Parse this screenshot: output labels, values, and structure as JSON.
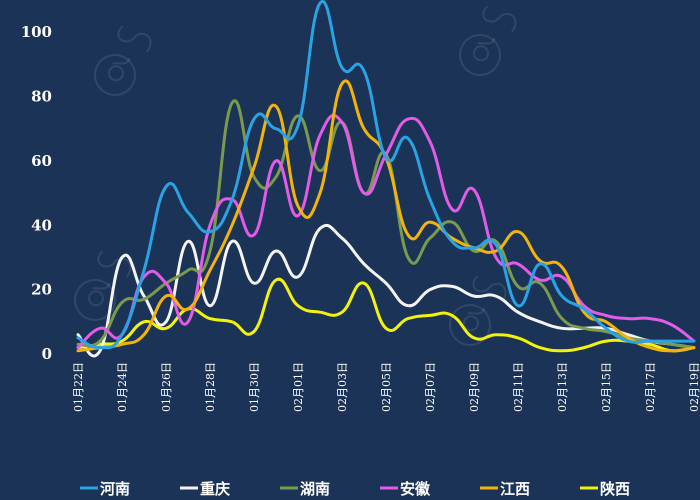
{
  "chart_data": {
    "type": "line",
    "title": "",
    "xlabel": "",
    "ylabel": "",
    "ylim": [
      0,
      110
    ],
    "yticks": [
      0,
      20,
      40,
      60,
      80,
      100
    ],
    "x": [
      "01月22日",
      "01月23日",
      "01月24日",
      "01月25日",
      "01月26日",
      "01月27日",
      "01月28日",
      "01月29日",
      "01月30日",
      "01月31日",
      "02月01日",
      "02月02日",
      "02月03日",
      "02月04日",
      "02月05日",
      "02月06日",
      "02月07日",
      "02月08日",
      "02月09日",
      "02月10日",
      "02月11日",
      "02月12日",
      "02月13日",
      "02月14日",
      "02月15日",
      "02月16日",
      "02月17日",
      "02月18日",
      "02月19日"
    ],
    "xtick_labels": [
      "01月22日",
      "01月24日",
      "01月26日",
      "01月28日",
      "01月30日",
      "02月01日",
      "02月03日",
      "02月05日",
      "02月07日",
      "02月09日",
      "02月11日",
      "02月13日",
      "02月15日",
      "02月17日",
      "02月19日"
    ],
    "grid": false,
    "legend": "bottom",
    "series": [
      {
        "name": "河南",
        "color": "#2aa3e6",
        "values": [
          5,
          2,
          6,
          26,
          52,
          44,
          38,
          48,
          73,
          70,
          71,
          109,
          89,
          88,
          61,
          67,
          48,
          35,
          33,
          34,
          15,
          28,
          18,
          14,
          8,
          4,
          4,
          4,
          4
        ]
      },
      {
        "name": "重庆",
        "color": "#f4f4f4",
        "values": [
          6,
          1,
          30,
          18,
          10,
          35,
          15,
          35,
          22,
          32,
          24,
          39,
          36,
          28,
          22,
          15,
          20,
          21,
          18,
          18,
          13,
          10,
          8,
          8,
          8,
          6,
          4,
          3,
          2
        ]
      },
      {
        "name": "湖南",
        "color": "#7a9a4e",
        "values": [
          3,
          4,
          16,
          17,
          22,
          26,
          32,
          78,
          55,
          55,
          74,
          57,
          72,
          50,
          62,
          30,
          36,
          41,
          32,
          35,
          21,
          22,
          11,
          8,
          7,
          5,
          4,
          3,
          2
        ]
      },
      {
        "name": "安徽",
        "color": "#e35ce9",
        "values": [
          2,
          8,
          6,
          24,
          22,
          10,
          40,
          48,
          37,
          60,
          43,
          68,
          72,
          50,
          62,
          73,
          66,
          45,
          51,
          30,
          28,
          23,
          24,
          15,
          12,
          11,
          11,
          9,
          4
        ]
      },
      {
        "name": "江西",
        "color": "#f2b40c",
        "values": [
          1,
          2,
          3,
          6,
          18,
          14,
          26,
          40,
          58,
          77,
          46,
          50,
          84,
          70,
          61,
          37,
          41,
          36,
          33,
          32,
          38,
          29,
          27,
          13,
          10,
          5,
          2,
          1,
          2
        ]
      },
      {
        "name": "陕西",
        "color": "#f2f20d",
        "values": [
          2,
          3,
          4,
          10,
          8,
          14,
          11,
          10,
          7,
          23,
          15,
          13,
          13,
          22,
          8,
          11,
          12,
          12,
          5,
          6,
          5,
          2,
          1,
          2,
          4,
          4,
          3,
          1,
          2
        ]
      }
    ]
  }
}
